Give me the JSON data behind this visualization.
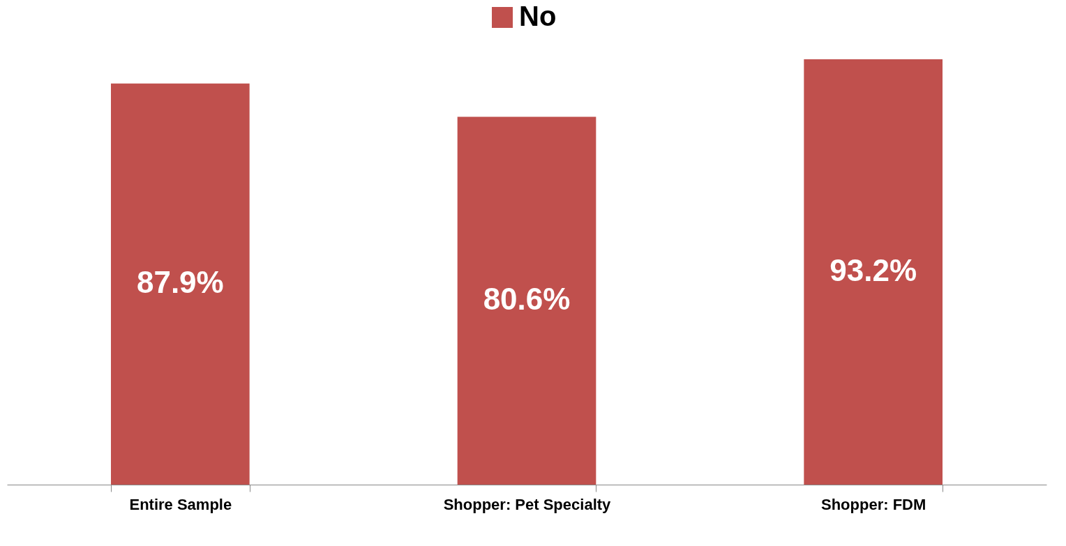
{
  "chart_data": {
    "type": "bar",
    "categories": [
      "Entire Sample",
      "Shopper: Pet Specialty",
      "Shopper: FDM"
    ],
    "series": [
      {
        "name": "No",
        "color": "#c0504d",
        "values": [
          87.9,
          80.6,
          93.2
        ],
        "value_labels": [
          "87.9%",
          "80.6%",
          "93.2%"
        ]
      }
    ],
    "legend": "top",
    "grid": false
  }
}
